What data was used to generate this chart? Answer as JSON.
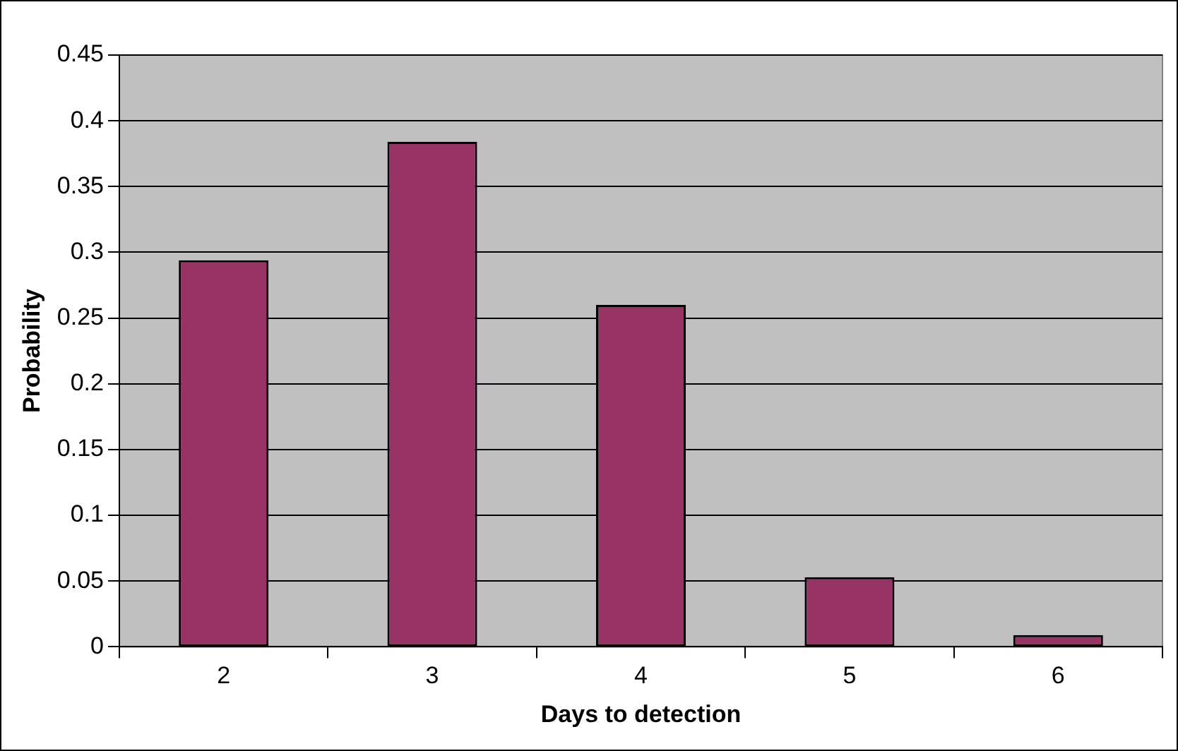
{
  "chart_data": {
    "type": "bar",
    "xlabel": "Days to detection",
    "ylabel": "Probability",
    "categories": [
      "2",
      "3",
      "4",
      "5",
      "6"
    ],
    "values": [
      0.294,
      0.384,
      0.26,
      0.053,
      0.009
    ],
    "color": "#993366",
    "ylim": [
      0,
      0.45
    ],
    "yticks": [
      0,
      0.05,
      0.1,
      0.15,
      0.2,
      0.25,
      0.3,
      0.35,
      0.4,
      0.45
    ],
    "grid": "y"
  }
}
